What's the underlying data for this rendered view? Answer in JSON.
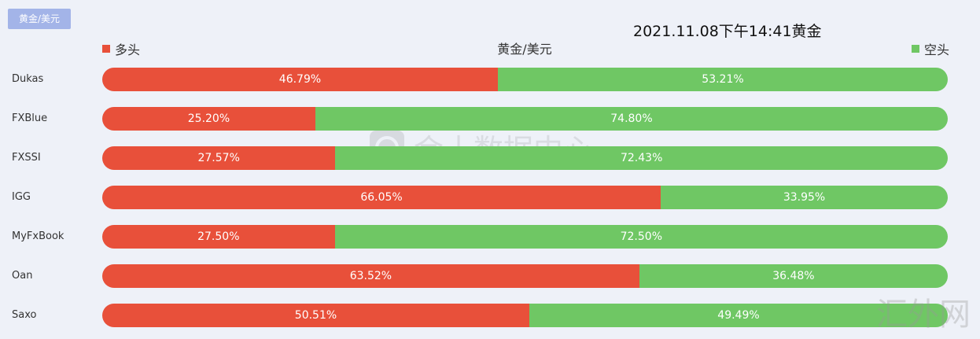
{
  "tag_label": "黄金/美元",
  "timestamp": "2021.11.08下午14:41黄金",
  "watermark_center": "金十数据中心",
  "watermark_corner": "汇外网",
  "colors": {
    "long": "#e8503a",
    "short": "#6fc764",
    "tag": "#a3b4e8"
  },
  "chart_data": {
    "type": "bar",
    "title": "黄金/美元",
    "stacked": true,
    "orientation": "horizontal",
    "legend_position": "top",
    "categories": [
      "Dukas",
      "FXBlue",
      "FXSSI",
      "IGG",
      "MyFxBook",
      "Oan",
      "Saxo"
    ],
    "series": [
      {
        "name": "多头",
        "values": [
          46.79,
          25.2,
          27.57,
          66.05,
          27.5,
          63.52,
          50.51
        ],
        "labels": [
          "46.79%",
          "25.20%",
          "27.57%",
          "66.05%",
          "27.50%",
          "63.52%",
          "50.51%"
        ]
      },
      {
        "name": "空头",
        "values": [
          53.21,
          74.8,
          72.43,
          33.95,
          72.5,
          36.48,
          49.49
        ],
        "labels": [
          "53.21%",
          "74.80%",
          "72.43%",
          "33.95%",
          "72.50%",
          "36.48%",
          "49.49%"
        ]
      }
    ]
  }
}
